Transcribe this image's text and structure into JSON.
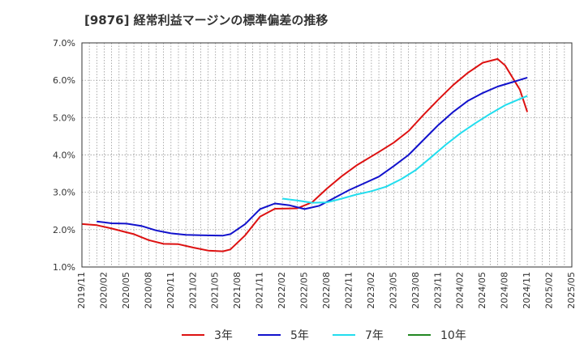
{
  "chart_data": {
    "type": "line",
    "title": "[9876]  経常利益マージンの標準偏差の推移",
    "xlabel": "",
    "ylabel": "",
    "ylim": [
      1.0,
      7.0
    ],
    "y_ticks": [
      "1.0%",
      "2.0%",
      "3.0%",
      "4.0%",
      "5.0%",
      "6.0%",
      "7.0%"
    ],
    "x_ticks": [
      "2019/11",
      "2020/02",
      "2020/05",
      "2020/08",
      "2020/11",
      "2021/02",
      "2021/05",
      "2021/08",
      "2021/11",
      "2022/02",
      "2022/05",
      "2022/08",
      "2022/11",
      "2023/02",
      "2023/05",
      "2023/08",
      "2023/11",
      "2024/02",
      "2024/05",
      "2024/08",
      "2024/11",
      "2025/02",
      "2025/05"
    ],
    "grid": true,
    "legend_position": "bottom",
    "series": [
      {
        "name": "3年",
        "color": "#dd1111",
        "values": [
          [
            "2019/11",
            2.15
          ],
          [
            "2020/01",
            2.12
          ],
          [
            "2020/03",
            2.03
          ],
          [
            "2020/05",
            1.93
          ],
          [
            "2020/06",
            1.88
          ],
          [
            "2020/08",
            1.72
          ],
          [
            "2020/10",
            1.62
          ],
          [
            "2020/12",
            1.61
          ],
          [
            "2021/02",
            1.52
          ],
          [
            "2021/04",
            1.44
          ],
          [
            "2021/06",
            1.42
          ],
          [
            "2021/07",
            1.47
          ],
          [
            "2021/09",
            1.85
          ],
          [
            "2021/11",
            2.35
          ],
          [
            "2022/01",
            2.56
          ],
          [
            "2022/04",
            2.57
          ],
          [
            "2022/06",
            2.73
          ],
          [
            "2022/08",
            3.1
          ],
          [
            "2022/10",
            3.43
          ],
          [
            "2022/12",
            3.72
          ],
          [
            "2023/03",
            4.08
          ],
          [
            "2023/05",
            4.33
          ],
          [
            "2023/07",
            4.64
          ],
          [
            "2023/09",
            5.07
          ],
          [
            "2023/11",
            5.48
          ],
          [
            "2024/01",
            5.87
          ],
          [
            "2024/03",
            6.2
          ],
          [
            "2024/05",
            6.47
          ],
          [
            "2024/07",
            6.57
          ],
          [
            "2024/08",
            6.4
          ],
          [
            "2024/10",
            5.75
          ],
          [
            "2024/11",
            5.15
          ]
        ]
      },
      {
        "name": "5年",
        "color": "#1111cc",
        "values": [
          [
            "2020/01",
            2.22
          ],
          [
            "2020/03",
            2.17
          ],
          [
            "2020/05",
            2.16
          ],
          [
            "2020/07",
            2.1
          ],
          [
            "2020/09",
            1.98
          ],
          [
            "2020/11",
            1.9
          ],
          [
            "2021/01",
            1.86
          ],
          [
            "2021/03",
            1.85
          ],
          [
            "2021/06",
            1.84
          ],
          [
            "2021/07",
            1.88
          ],
          [
            "2021/09",
            2.15
          ],
          [
            "2021/11",
            2.55
          ],
          [
            "2022/01",
            2.7
          ],
          [
            "2022/03",
            2.65
          ],
          [
            "2022/05",
            2.55
          ],
          [
            "2022/07",
            2.64
          ],
          [
            "2022/09",
            2.85
          ],
          [
            "2022/11",
            3.06
          ],
          [
            "2023/01",
            3.24
          ],
          [
            "2023/03",
            3.42
          ],
          [
            "2023/05",
            3.7
          ],
          [
            "2023/07",
            4.0
          ],
          [
            "2023/09",
            4.4
          ],
          [
            "2023/11",
            4.8
          ],
          [
            "2024/01",
            5.15
          ],
          [
            "2024/03",
            5.45
          ],
          [
            "2024/05",
            5.66
          ],
          [
            "2024/07",
            5.83
          ],
          [
            "2024/09",
            5.95
          ],
          [
            "2024/11",
            6.07
          ]
        ]
      },
      {
        "name": "7年",
        "color": "#22ddee",
        "values": [
          [
            "2022/02",
            2.83
          ],
          [
            "2022/04",
            2.78
          ],
          [
            "2022/06",
            2.72
          ],
          [
            "2022/08",
            2.73
          ],
          [
            "2022/10",
            2.83
          ],
          [
            "2022/12",
            2.94
          ],
          [
            "2023/02",
            3.03
          ],
          [
            "2023/04",
            3.15
          ],
          [
            "2023/06",
            3.35
          ],
          [
            "2023/08",
            3.6
          ],
          [
            "2023/10",
            3.93
          ],
          [
            "2023/12",
            4.27
          ],
          [
            "2024/02",
            4.58
          ],
          [
            "2024/04",
            4.85
          ],
          [
            "2024/06",
            5.1
          ],
          [
            "2024/08",
            5.33
          ],
          [
            "2024/10",
            5.5
          ],
          [
            "2024/11",
            5.58
          ]
        ]
      },
      {
        "name": "10年",
        "color": "#228822",
        "values": []
      }
    ]
  }
}
